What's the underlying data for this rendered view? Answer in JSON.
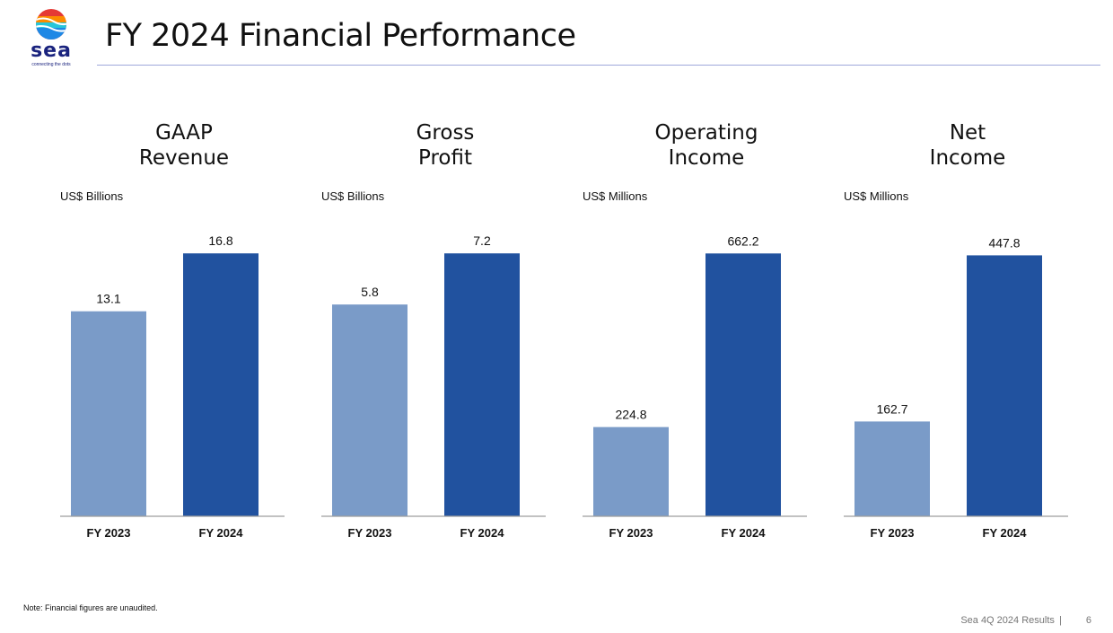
{
  "header": {
    "title": "FY 2024 Financial Performance",
    "logo_word": "sea",
    "logo_tagline": "connecting the dots"
  },
  "colors": {
    "fy2023": "#7a9bc8",
    "fy2024": "#21529f",
    "rule": "#9fa8da"
  },
  "chart_data": [
    {
      "type": "bar",
      "title": [
        "GAAP",
        "Revenue"
      ],
      "unit": "US$ Billions",
      "categories": [
        "FY 2023",
        "FY 2024"
      ],
      "values": [
        13.1,
        16.8
      ],
      "value_labels": [
        "13.1",
        "16.8"
      ],
      "ylim": [
        0,
        17.5
      ]
    },
    {
      "type": "bar",
      "title": [
        "Gross",
        "Profit"
      ],
      "unit": "US$ Billions",
      "categories": [
        "FY 2023",
        "FY 2024"
      ],
      "values": [
        5.8,
        7.2
      ],
      "value_labels": [
        "5.8",
        "7.2"
      ],
      "ylim": [
        0,
        7.5
      ]
    },
    {
      "type": "bar",
      "title": [
        "Operating",
        "Income"
      ],
      "unit": "US$ Millions",
      "categories": [
        "FY 2023",
        "FY 2024"
      ],
      "values": [
        224.8,
        662.2
      ],
      "value_labels": [
        "224.8",
        "662.2"
      ],
      "ylim": [
        0,
        690
      ]
    },
    {
      "type": "bar",
      "title": [
        "Net",
        "Income"
      ],
      "unit": "US$ Millions",
      "categories": [
        "FY 2023",
        "FY 2024"
      ],
      "values": [
        162.7,
        447.8
      ],
      "value_labels": [
        "162.7",
        "447.8"
      ],
      "ylim": [
        0,
        470
      ]
    }
  ],
  "note": "Note: Financial figures are unaudited.",
  "footer": {
    "text": "Sea 4Q 2024 Results",
    "separator": "|",
    "page_number": "6"
  }
}
